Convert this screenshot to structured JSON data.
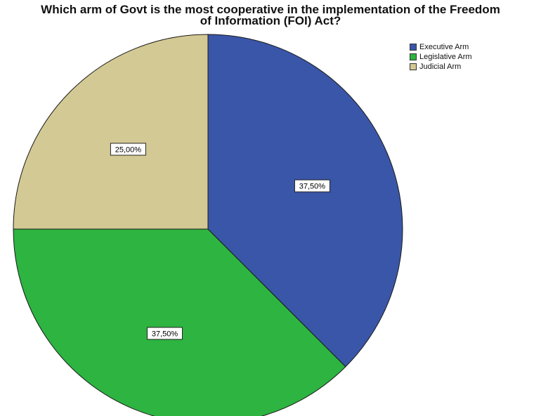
{
  "chart_data": {
    "type": "pie",
    "title": "Which arm of Govt is the most cooperative in the implementation of the Freedom of Information (FOI) Act?",
    "title_lines": [
      "Which arm of Govt is the most cooperative in the implementation of the Freedom",
      "of Information (FOI) Act?"
    ],
    "slices": [
      {
        "name": "Executive Arm",
        "value": 37.5,
        "label": "37,50%",
        "color": "#3a56a8"
      },
      {
        "name": "Legislative Arm",
        "value": 37.5,
        "label": "37,50%",
        "color": "#2db441"
      },
      {
        "name": "Judicial Arm",
        "value": 25.0,
        "label": "25,00%",
        "color": "#d3c994"
      }
    ],
    "start": "12 o'clock",
    "direction": "clockwise",
    "legend_position": "top-right"
  }
}
